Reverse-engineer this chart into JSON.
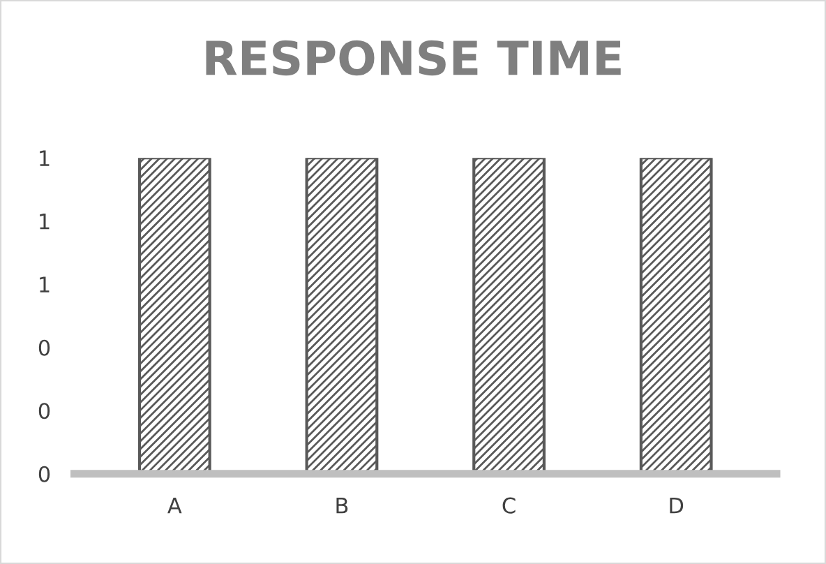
{
  "chart_data": {
    "type": "bar",
    "title": "RESPONSE TIME",
    "categories": [
      "A",
      "B",
      "C",
      "D"
    ],
    "values": [
      1,
      1,
      1,
      1
    ],
    "color": "#595959",
    "ylim": [
      0,
      1
    ],
    "yticks": [
      {
        "value": 0,
        "label": "0"
      },
      {
        "value": 0.2,
        "label": "0"
      },
      {
        "value": 0.4,
        "label": "0"
      },
      {
        "value": 0.6,
        "label": "1"
      },
      {
        "value": 0.8,
        "label": "1"
      },
      {
        "value": 1,
        "label": "1"
      }
    ],
    "grid": false
  }
}
